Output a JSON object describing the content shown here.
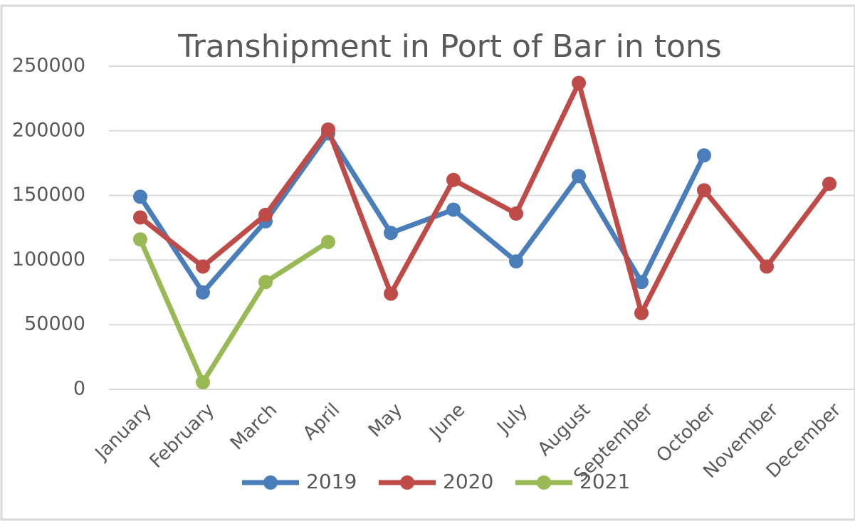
{
  "chart_data": {
    "type": "line",
    "title": "Transhipment in Port of Bar in tons",
    "categories": [
      "January",
      "February",
      "March",
      "April",
      "May",
      "June",
      "July",
      "August",
      "September",
      "October",
      "November",
      "December"
    ],
    "series": [
      {
        "name": "2019",
        "color": "#4a7ebb",
        "values": [
          149000,
          75000,
          130000,
          198000,
          121000,
          139000,
          99000,
          165000,
          83000,
          181000,
          null,
          null
        ]
      },
      {
        "name": "2020",
        "color": "#be4b48",
        "values": [
          133000,
          95000,
          135000,
          201000,
          74000,
          162000,
          136000,
          237000,
          59000,
          154000,
          95000,
          159000
        ]
      },
      {
        "name": "2021",
        "color": "#98b954",
        "values": [
          116000,
          5500,
          83000,
          114000,
          null,
          null,
          null,
          null,
          null,
          null,
          null,
          null
        ]
      }
    ],
    "ylim": [
      0,
      250000
    ],
    "yticks": [
      0,
      50000,
      100000,
      150000,
      200000,
      250000
    ],
    "grid": true,
    "legend": "bottom"
  }
}
